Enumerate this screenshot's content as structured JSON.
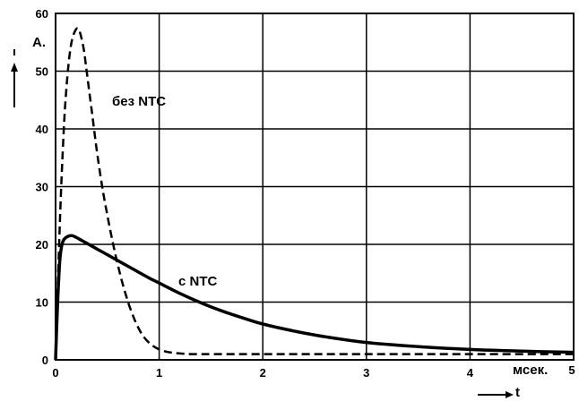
{
  "chart_data": {
    "type": "line",
    "xlim": [
      0,
      5
    ],
    "ylim": [
      0,
      60
    ],
    "xticks": [
      0,
      1,
      2,
      3,
      4,
      5
    ],
    "yticks": [
      0,
      10,
      20,
      30,
      40,
      50,
      60
    ],
    "xlabel": "мсек.",
    "xaxis_symbol": "t",
    "ylabel": "A.",
    "grid": true,
    "annotations": [
      "без NTC",
      "с NTC"
    ],
    "series": [
      {
        "name": "без NTC",
        "style": "dashed",
        "x": [
          0,
          0.02,
          0.05,
          0.08,
          0.1,
          0.13,
          0.16,
          0.2,
          0.23,
          0.27,
          0.3,
          0.35,
          0.4,
          0.45,
          0.5,
          0.55,
          0.6,
          0.65,
          0.7,
          0.75,
          0.8,
          0.85,
          0.9,
          0.95,
          1.0,
          1.05,
          1.1,
          1.2,
          1.3,
          1.4,
          1.5,
          1.7,
          2.0,
          3.0,
          4.0,
          5.0
        ],
        "y": [
          0,
          12,
          28,
          40,
          46,
          52,
          55.5,
          57.3,
          57,
          54,
          50,
          43,
          36,
          30,
          25,
          20.5,
          16.5,
          13,
          10,
          7.5,
          5.5,
          4,
          3,
          2.3,
          1.8,
          1.5,
          1.3,
          1.1,
          1.0,
          1.0,
          1.0,
          1.0,
          1.0,
          1.0,
          1.0,
          1.0
        ]
      },
      {
        "name": "с NTC",
        "style": "solid",
        "x": [
          0,
          0.02,
          0.04,
          0.06,
          0.08,
          0.12,
          0.16,
          0.2,
          0.25,
          0.3,
          0.4,
          0.5,
          0.6,
          0.7,
          0.8,
          0.9,
          1.0,
          1.2,
          1.4,
          1.6,
          1.8,
          2.0,
          2.3,
          2.6,
          3.0,
          3.5,
          4.0,
          4.5,
          5.0
        ],
        "y": [
          0,
          10,
          17,
          19.8,
          20.8,
          21.4,
          21.5,
          21.2,
          20.7,
          20.2,
          19.2,
          18.2,
          17.2,
          16.2,
          15.2,
          14.2,
          13.3,
          11.5,
          9.9,
          8.5,
          7.3,
          6.2,
          5.0,
          4.0,
          3.0,
          2.3,
          1.8,
          1.5,
          1.3
        ]
      }
    ]
  }
}
